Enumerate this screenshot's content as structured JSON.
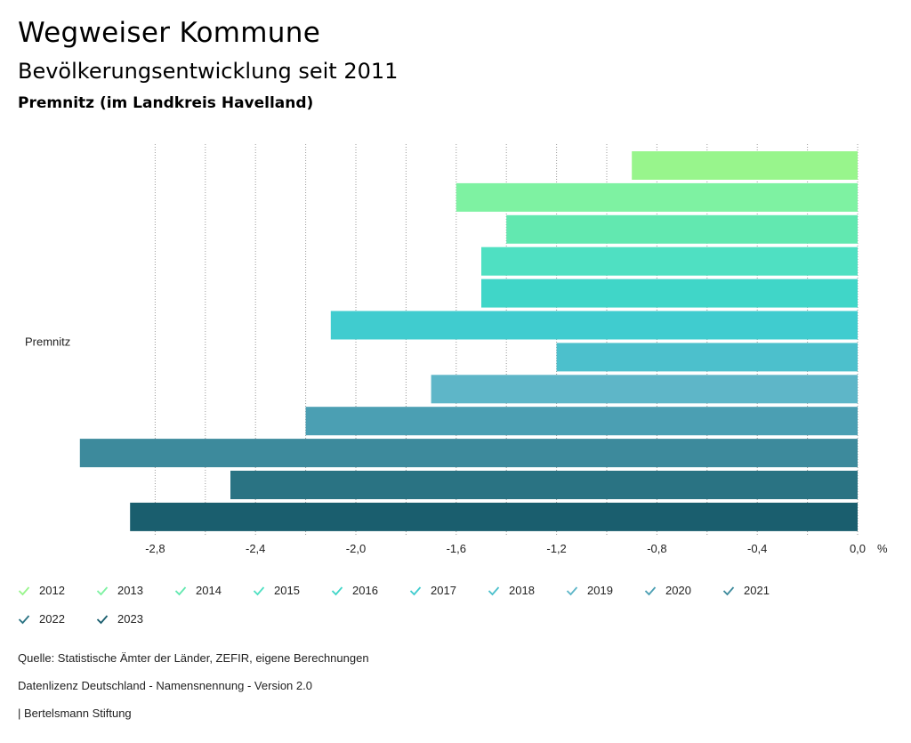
{
  "header": {
    "title": "Wegweiser Kommune",
    "subtitle": "Bevölkerungsentwicklung seit 2011",
    "place": "Premnitz (im Landkreis Havelland)"
  },
  "chart_data": {
    "type": "bar",
    "orientation": "horizontal",
    "categories": [
      "Premnitz"
    ],
    "series": [
      {
        "name": "2012",
        "values": [
          -0.9
        ],
        "color": "#98f58c"
      },
      {
        "name": "2013",
        "values": [
          -1.6
        ],
        "color": "#7ef2a2"
      },
      {
        "name": "2014",
        "values": [
          -1.4
        ],
        "color": "#62e8b0"
      },
      {
        "name": "2015",
        "values": [
          -1.5
        ],
        "color": "#4fe0c2"
      },
      {
        "name": "2016",
        "values": [
          -1.5
        ],
        "color": "#40d6c8"
      },
      {
        "name": "2017",
        "values": [
          -2.1
        ],
        "color": "#40cccf"
      },
      {
        "name": "2018",
        "values": [
          -1.2
        ],
        "color": "#4cc0cc"
      },
      {
        "name": "2019",
        "values": [
          -1.7
        ],
        "color": "#5eb6c8"
      },
      {
        "name": "2020",
        "values": [
          -2.2
        ],
        "color": "#4b9fb3"
      },
      {
        "name": "2021",
        "values": [
          -3.1
        ],
        "color": "#3d8a9c"
      },
      {
        "name": "2022",
        "values": [
          -2.5
        ],
        "color": "#2a7383"
      },
      {
        "name": "2023",
        "values": [
          -2.9
        ],
        "color": "#1a5e6e"
      }
    ],
    "xlim": [
      -3.0,
      0.0
    ],
    "xticks": [
      "-2,8",
      "-2,4",
      "-2,0",
      "-1,6",
      "-1,2",
      "-0,8",
      "-0,4",
      "0,0"
    ],
    "xtick_values": [
      -2.8,
      -2.4,
      -2.0,
      -1.6,
      -1.2,
      -0.8,
      -0.4,
      0.0
    ],
    "xunit": "%",
    "grid": true
  },
  "footer": {
    "source": "Quelle: Statistische Ämter der Länder, ZEFIR, eigene Berechnungen",
    "license": "Datenlizenz Deutschland - Namensnennung - Version 2.0",
    "publisher": "| Bertelsmann Stiftung"
  }
}
